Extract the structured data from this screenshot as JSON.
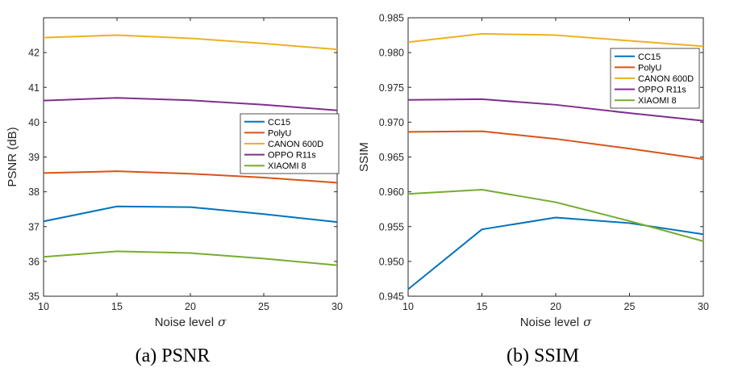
{
  "chart_data": [
    {
      "type": "line",
      "id": "psnr",
      "caption": "(a)  PSNR",
      "xlabel": "Noise level",
      "xlabel_symbol": "σ",
      "ylabel": "PSNR (dB)",
      "x": [
        10,
        15,
        20,
        25,
        30
      ],
      "xlim": [
        10,
        30
      ],
      "ylim": [
        35,
        43
      ],
      "xticks": [
        "10",
        "15",
        "20",
        "25",
        "30"
      ],
      "yticks": [
        "35",
        "36",
        "37",
        "38",
        "39",
        "40",
        "41",
        "42"
      ],
      "legend_position": "right-middle",
      "series": [
        {
          "name": "CC15",
          "color": "#0072BD",
          "values": [
            37.15,
            37.58,
            37.56,
            37.36,
            37.13
          ]
        },
        {
          "name": "PolyU",
          "color": "#D95319",
          "values": [
            38.54,
            38.59,
            38.52,
            38.41,
            38.26
          ]
        },
        {
          "name": "CANON 600D",
          "color": "#EDB120",
          "values": [
            42.43,
            42.5,
            42.41,
            42.26,
            42.09
          ]
        },
        {
          "name": "OPPO R11s",
          "color": "#7E2F8E",
          "values": [
            40.62,
            40.7,
            40.63,
            40.5,
            40.34
          ]
        },
        {
          "name": "XIAOMI 8",
          "color": "#77AC30",
          "values": [
            36.13,
            36.29,
            36.24,
            36.08,
            35.89
          ]
        }
      ]
    },
    {
      "type": "line",
      "id": "ssim",
      "caption": "(b)  SSIM",
      "xlabel": "Noise level",
      "xlabel_symbol": "σ",
      "ylabel": "SSIM",
      "x": [
        10,
        15,
        20,
        25,
        30
      ],
      "xlim": [
        10,
        30
      ],
      "ylim": [
        0.945,
        0.985
      ],
      "xticks": [
        "10",
        "15",
        "20",
        "25",
        "30"
      ],
      "yticks": [
        "0.945",
        "0.950",
        "0.955",
        "0.960",
        "0.965",
        "0.970",
        "0.975",
        "0.980",
        "0.985"
      ],
      "legend_position": "top-right",
      "series": [
        {
          "name": "CC15",
          "color": "#0072BD",
          "values": [
            0.946,
            0.9546,
            0.9563,
            0.9555,
            0.9539
          ]
        },
        {
          "name": "PolyU",
          "color": "#D95319",
          "values": [
            0.9686,
            0.9687,
            0.9676,
            0.9662,
            0.9647
          ]
        },
        {
          "name": "CANON 600D",
          "color": "#EDB120",
          "values": [
            0.9815,
            0.9827,
            0.9825,
            0.9817,
            0.9809
          ]
        },
        {
          "name": "OPPO R11s",
          "color": "#7E2F8E",
          "values": [
            0.9732,
            0.9733,
            0.9725,
            0.9713,
            0.9702
          ]
        },
        {
          "name": "XIAOMI 8",
          "color": "#77AC30",
          "values": [
            0.9597,
            0.9603,
            0.9585,
            0.9558,
            0.9529
          ]
        }
      ]
    }
  ]
}
